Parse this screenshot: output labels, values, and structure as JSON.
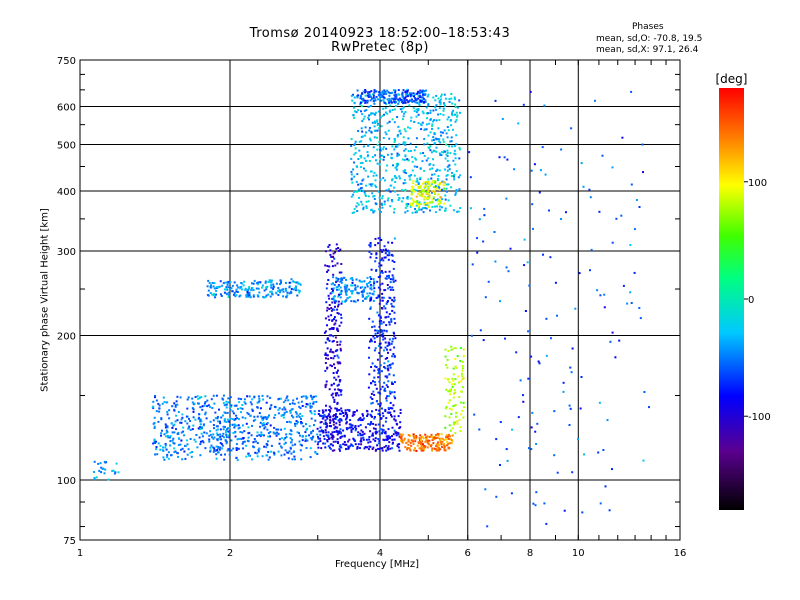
{
  "chart_data": {
    "type": "scatter",
    "title": "Tromsø 20140923 18:52:00–18:53:43",
    "subtitle": "RwPretec (8p)",
    "stats": {
      "heading": "Phases",
      "line_o": "mean, sd,O: -70.8, 19.5",
      "line_x": "mean, sd,X: 97.1, 26.4"
    },
    "xlabel": "Frequency [MHz]",
    "ylabel": "Stationary phase Virtual Height [km]",
    "xscale": "log",
    "yscale": "log",
    "xlim": [
      1,
      16
    ],
    "ylim": [
      75,
      750
    ],
    "xticks": [
      1,
      2,
      4,
      6,
      8,
      10,
      16
    ],
    "yticks": [
      75,
      100,
      200,
      300,
      400,
      500,
      600,
      750
    ],
    "grid": true,
    "colorbar": {
      "label": "[deg]",
      "range": [
        -180,
        180
      ],
      "ticks": [
        100,
        0,
        -100
      ]
    },
    "clusters": [
      {
        "name": "E-layer low trace",
        "f": [
          1.05,
          1.2
        ],
        "h": [
          100,
          110
        ],
        "phase": -35,
        "n": 25
      },
      {
        "name": "F trace lower band",
        "f": [
          1.4,
          3.0
        ],
        "h": [
          110,
          150
        ],
        "phase": -50,
        "n": 700
      },
      {
        "name": "F trace rising",
        "f": [
          3.0,
          4.4
        ],
        "h": [
          115,
          140
        ],
        "phase": -85,
        "n": 350
      },
      {
        "name": "Vertical trace 3.2 MHz",
        "f": [
          3.1,
          3.35
        ],
        "h": [
          120,
          310
        ],
        "phase": -95,
        "n": 220
      },
      {
        "name": "Es band 250 km",
        "f": [
          1.8,
          2.8
        ],
        "h": [
          240,
          262
        ],
        "phase": -40,
        "n": 200
      },
      {
        "name": "Band 250 km mid",
        "f": [
          3.2,
          3.9
        ],
        "h": [
          235,
          265
        ],
        "phase": -45,
        "n": 130
      },
      {
        "name": "F2 cusp 4 MHz",
        "f": [
          3.8,
          4.3
        ],
        "h": [
          140,
          320
        ],
        "phase": -75,
        "n": 300
      },
      {
        "name": "X-mode arc 4.4 MHz",
        "f": [
          4.4,
          5.6
        ],
        "h": [
          115,
          125
        ],
        "phase": 140,
        "n": 180
      },
      {
        "name": "Rising X trace",
        "f": [
          5.4,
          5.9
        ],
        "h": [
          125,
          190
        ],
        "phase": 80,
        "n": 90
      },
      {
        "name": "Spread F upper",
        "f": [
          3.5,
          5.8
        ],
        "h": [
          360,
          640
        ],
        "phase": -30,
        "n": 700
      },
      {
        "name": "X-mode spread upper",
        "f": [
          4.6,
          5.4
        ],
        "h": [
          370,
          420
        ],
        "phase": 90,
        "n": 120
      },
      {
        "name": "Top band 630 km",
        "f": [
          3.6,
          5.0
        ],
        "h": [
          610,
          650
        ],
        "phase": -60,
        "n": 200
      },
      {
        "name": "Sparse high freq",
        "f": [
          6.0,
          14.0
        ],
        "h": [
          80,
          650
        ],
        "phase": -60,
        "n": 160
      }
    ]
  }
}
